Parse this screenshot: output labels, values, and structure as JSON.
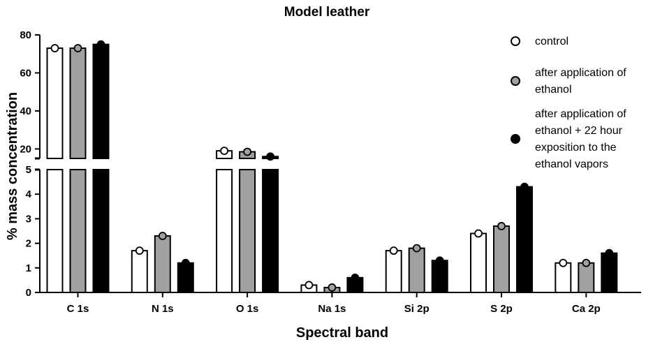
{
  "chart_data": {
    "type": "bar",
    "title": "Model leather",
    "xlabel": "Spectral band",
    "ylabel": "% mass concentration",
    "categories": [
      "C 1s",
      "N 1s",
      "O 1s",
      "Na 1s",
      "Si 2p",
      "S 2p",
      "Ca 2p"
    ],
    "series": [
      {
        "name": "control",
        "values": [
          73,
          1.7,
          19,
          0.3,
          1.7,
          2.4,
          1.2
        ],
        "color": "#ffffff"
      },
      {
        "name": "after application of ethanol",
        "values": [
          73,
          2.3,
          18.5,
          0.2,
          1.8,
          2.7,
          1.2
        ],
        "color": "#a0a0a0"
      },
      {
        "name": "after application of ethanol + 22 hour exposition to the ethanol vapors",
        "values": [
          75,
          1.2,
          16,
          0.6,
          1.3,
          4.3,
          1.6
        ],
        "color": "#000000"
      }
    ],
    "y_axis_break": {
      "lower_range": [
        0,
        5
      ],
      "upper_range": [
        15,
        80
      ]
    },
    "yticks_lower": [
      0,
      1,
      2,
      3,
      4,
      5
    ],
    "yticks_upper": [
      20,
      40,
      60,
      80
    ],
    "legend_lines": [
      [
        "control"
      ],
      [
        "after application of",
        "ethanol"
      ],
      [
        "after application of",
        "ethanol + 22 hour",
        "exposition to the",
        "ethanol vapors"
      ]
    ],
    "legend_position": "right",
    "grid": false
  }
}
